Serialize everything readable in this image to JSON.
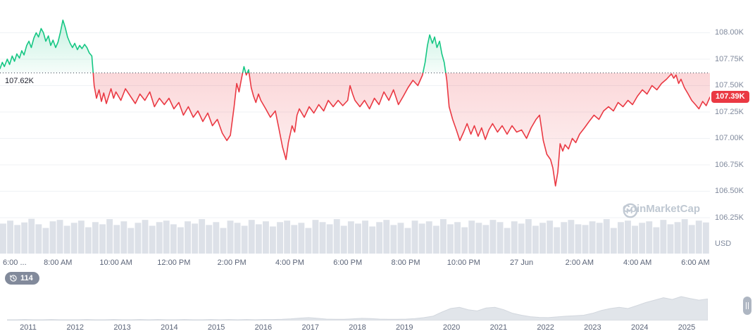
{
  "watermark": {
    "text": "CoinMarketCap"
  },
  "badges": {
    "history_count": "114"
  },
  "chart_data": {
    "type": "line",
    "baseline_value": 107.62,
    "baseline_label": "107.62K",
    "current_price_value": 107.39,
    "current_price_label": "107.39K",
    "y_axis_unit": "USD",
    "xlim": [
      0,
      24.5
    ],
    "ylim": [
      105.91,
      108.31
    ],
    "grid": true,
    "colors": {
      "up": "#16c784",
      "down": "#ea3943",
      "volume": "#dde1e8",
      "grid": "#eff2f5",
      "baseline": "#394050",
      "navigator_fill": "#e1e5ea"
    },
    "y_ticks": [
      {
        "v": 108.0,
        "label": "108.00K"
      },
      {
        "v": 107.75,
        "label": "107.75K"
      },
      {
        "v": 107.5,
        "label": "107.50K"
      },
      {
        "v": 107.25,
        "label": "107.25K"
      },
      {
        "v": 107.0,
        "label": "107.00K"
      },
      {
        "v": 106.75,
        "label": "106.75K"
      },
      {
        "v": 106.5,
        "label": "106.50K"
      },
      {
        "v": 106.25,
        "label": "106.25K"
      }
    ],
    "x_ticks": [
      {
        "t": 0,
        "label": "6:00 ..."
      },
      {
        "t": 2,
        "label": "8:00 AM"
      },
      {
        "t": 4,
        "label": "10:00 AM"
      },
      {
        "t": 6,
        "label": "12:00 PM"
      },
      {
        "t": 8,
        "label": "2:00 PM"
      },
      {
        "t": 10,
        "label": "4:00 PM"
      },
      {
        "t": 12,
        "label": "6:00 PM"
      },
      {
        "t": 14,
        "label": "8:00 PM"
      },
      {
        "t": 16,
        "label": "10:00 PM"
      },
      {
        "t": 18,
        "label": "27 Jun"
      },
      {
        "t": 20,
        "label": "2:00 AM"
      },
      {
        "t": 22,
        "label": "4:00 AM"
      },
      {
        "t": 24,
        "label": "6:00 AM"
      }
    ],
    "series": [
      {
        "name": "price",
        "points": [
          [
            0,
            107.66
          ],
          [
            0.08,
            107.72
          ],
          [
            0.15,
            107.68
          ],
          [
            0.25,
            107.75
          ],
          [
            0.33,
            107.7
          ],
          [
            0.42,
            107.78
          ],
          [
            0.5,
            107.73
          ],
          [
            0.58,
            107.8
          ],
          [
            0.67,
            107.76
          ],
          [
            0.75,
            107.83
          ],
          [
            0.83,
            107.79
          ],
          [
            0.92,
            107.88
          ],
          [
            1,
            107.92
          ],
          [
            1.08,
            107.86
          ],
          [
            1.17,
            107.95
          ],
          [
            1.25,
            108.0
          ],
          [
            1.33,
            107.96
          ],
          [
            1.42,
            108.04
          ],
          [
            1.5,
            108.0
          ],
          [
            1.58,
            107.92
          ],
          [
            1.67,
            107.97
          ],
          [
            1.75,
            107.88
          ],
          [
            1.83,
            107.93
          ],
          [
            1.92,
            107.86
          ],
          [
            2,
            107.91
          ],
          [
            2.08,
            108.0
          ],
          [
            2.17,
            108.12
          ],
          [
            2.25,
            108.05
          ],
          [
            2.33,
            107.96
          ],
          [
            2.42,
            107.9
          ],
          [
            2.5,
            107.86
          ],
          [
            2.58,
            107.9
          ],
          [
            2.67,
            107.84
          ],
          [
            2.75,
            107.88
          ],
          [
            2.83,
            107.85
          ],
          [
            2.92,
            107.89
          ],
          [
            3,
            107.86
          ],
          [
            3.08,
            107.81
          ],
          [
            3.17,
            107.78
          ],
          [
            3.25,
            107.5
          ],
          [
            3.33,
            107.38
          ],
          [
            3.42,
            107.46
          ],
          [
            3.5,
            107.35
          ],
          [
            3.58,
            107.43
          ],
          [
            3.67,
            107.33
          ],
          [
            3.75,
            107.4
          ],
          [
            3.83,
            107.47
          ],
          [
            3.92,
            107.38
          ],
          [
            4,
            107.44
          ],
          [
            4.17,
            107.36
          ],
          [
            4.33,
            107.47
          ],
          [
            4.5,
            107.4
          ],
          [
            4.67,
            107.33
          ],
          [
            4.83,
            107.42
          ],
          [
            5,
            107.36
          ],
          [
            5.17,
            107.44
          ],
          [
            5.33,
            107.3
          ],
          [
            5.5,
            107.38
          ],
          [
            5.67,
            107.32
          ],
          [
            5.83,
            107.38
          ],
          [
            6,
            107.28
          ],
          [
            6.17,
            107.34
          ],
          [
            6.33,
            107.22
          ],
          [
            6.5,
            107.3
          ],
          [
            6.67,
            107.2
          ],
          [
            6.83,
            107.26
          ],
          [
            7,
            107.16
          ],
          [
            7.17,
            107.24
          ],
          [
            7.33,
            107.12
          ],
          [
            7.5,
            107.18
          ],
          [
            7.67,
            107.05
          ],
          [
            7.83,
            106.98
          ],
          [
            7.95,
            107.03
          ],
          [
            8.08,
            107.3
          ],
          [
            8.17,
            107.52
          ],
          [
            8.25,
            107.44
          ],
          [
            8.33,
            107.56
          ],
          [
            8.42,
            107.68
          ],
          [
            8.5,
            107.6
          ],
          [
            8.58,
            107.65
          ],
          [
            8.67,
            107.48
          ],
          [
            8.75,
            107.4
          ],
          [
            8.83,
            107.34
          ],
          [
            8.92,
            107.42
          ],
          [
            9,
            107.36
          ],
          [
            9.17,
            107.28
          ],
          [
            9.33,
            107.2
          ],
          [
            9.5,
            107.26
          ],
          [
            9.62,
            107.1
          ],
          [
            9.75,
            106.92
          ],
          [
            9.87,
            106.8
          ],
          [
            9.95,
            106.96
          ],
          [
            10.08,
            107.12
          ],
          [
            10.17,
            107.06
          ],
          [
            10.25,
            107.22
          ],
          [
            10.33,
            107.28
          ],
          [
            10.5,
            107.2
          ],
          [
            10.67,
            107.3
          ],
          [
            10.83,
            107.24
          ],
          [
            11,
            107.32
          ],
          [
            11.17,
            107.26
          ],
          [
            11.33,
            107.36
          ],
          [
            11.5,
            107.3
          ],
          [
            11.67,
            107.36
          ],
          [
            11.83,
            107.31
          ],
          [
            12,
            107.36
          ],
          [
            12.08,
            107.5
          ],
          [
            12.17,
            107.42
          ],
          [
            12.25,
            107.36
          ],
          [
            12.42,
            107.3
          ],
          [
            12.58,
            107.36
          ],
          [
            12.75,
            107.28
          ],
          [
            12.92,
            107.38
          ],
          [
            13.08,
            107.32
          ],
          [
            13.25,
            107.44
          ],
          [
            13.42,
            107.36
          ],
          [
            13.58,
            107.46
          ],
          [
            13.75,
            107.32
          ],
          [
            13.92,
            107.4
          ],
          [
            14.08,
            107.48
          ],
          [
            14.25,
            107.55
          ],
          [
            14.42,
            107.5
          ],
          [
            14.58,
            107.6
          ],
          [
            14.67,
            107.72
          ],
          [
            14.75,
            107.88
          ],
          [
            14.83,
            107.98
          ],
          [
            14.92,
            107.9
          ],
          [
            15,
            107.96
          ],
          [
            15.08,
            107.86
          ],
          [
            15.17,
            107.92
          ],
          [
            15.25,
            107.8
          ],
          [
            15.33,
            107.72
          ],
          [
            15.42,
            107.55
          ],
          [
            15.5,
            107.3
          ],
          [
            15.62,
            107.18
          ],
          [
            15.75,
            107.08
          ],
          [
            15.87,
            106.98
          ],
          [
            16,
            107.06
          ],
          [
            16.12,
            107.14
          ],
          [
            16.25,
            107.04
          ],
          [
            16.37,
            107.12
          ],
          [
            16.5,
            107.02
          ],
          [
            16.62,
            107.1
          ],
          [
            16.75,
            106.99
          ],
          [
            16.87,
            107.08
          ],
          [
            17,
            107.14
          ],
          [
            17.17,
            107.06
          ],
          [
            17.33,
            107.12
          ],
          [
            17.5,
            107.04
          ],
          [
            17.67,
            107.12
          ],
          [
            17.83,
            107.06
          ],
          [
            18,
            107.08
          ],
          [
            18.17,
            107.0
          ],
          [
            18.33,
            107.1
          ],
          [
            18.5,
            107.18
          ],
          [
            18.62,
            107.22
          ],
          [
            18.75,
            106.98
          ],
          [
            18.87,
            106.85
          ],
          [
            19,
            106.8
          ],
          [
            19.08,
            106.72
          ],
          [
            19.17,
            106.55
          ],
          [
            19.25,
            106.68
          ],
          [
            19.33,
            106.95
          ],
          [
            19.42,
            106.88
          ],
          [
            19.5,
            106.94
          ],
          [
            19.62,
            106.9
          ],
          [
            19.75,
            107.0
          ],
          [
            19.87,
            106.96
          ],
          [
            20,
            107.04
          ],
          [
            20.17,
            107.1
          ],
          [
            20.33,
            107.16
          ],
          [
            20.5,
            107.22
          ],
          [
            20.67,
            107.18
          ],
          [
            20.83,
            107.26
          ],
          [
            21,
            107.3
          ],
          [
            21.17,
            107.26
          ],
          [
            21.33,
            107.34
          ],
          [
            21.5,
            107.3
          ],
          [
            21.67,
            107.36
          ],
          [
            21.83,
            107.32
          ],
          [
            22,
            107.4
          ],
          [
            22.17,
            107.46
          ],
          [
            22.33,
            107.42
          ],
          [
            22.5,
            107.5
          ],
          [
            22.67,
            107.46
          ],
          [
            22.83,
            107.52
          ],
          [
            23,
            107.56
          ],
          [
            23.17,
            107.61
          ],
          [
            23.25,
            107.57
          ],
          [
            23.33,
            107.6
          ],
          [
            23.42,
            107.52
          ],
          [
            23.5,
            107.56
          ],
          [
            23.62,
            107.48
          ],
          [
            23.75,
            107.42
          ],
          [
            23.87,
            107.36
          ],
          [
            24,
            107.32
          ],
          [
            24.12,
            107.28
          ],
          [
            24.25,
            107.35
          ],
          [
            24.37,
            107.31
          ],
          [
            24.5,
            107.39
          ]
        ]
      }
    ],
    "volume": [
      0.82,
      0.9,
      0.78,
      0.85,
      0.95,
      0.8,
      0.7,
      0.88,
      0.92,
      0.76,
      0.84,
      0.9,
      0.72,
      0.86,
      0.8,
      0.94,
      0.78,
      0.88,
      0.7,
      0.84,
      0.92,
      0.76,
      0.86,
      0.9,
      0.8,
      0.72,
      0.88,
      0.82,
      0.94,
      0.78,
      0.86,
      0.7,
      0.9,
      0.84,
      0.76,
      0.92,
      0.8,
      0.88,
      0.74,
      0.86,
      0.9,
      0.78,
      0.84,
      0.7,
      0.92,
      0.86,
      0.8,
      0.94,
      0.76,
      0.88,
      0.82,
      0.9,
      0.74,
      0.86,
      0.92,
      0.78,
      0.84,
      0.7,
      0.9,
      0.82,
      0.88,
      0.76,
      0.94,
      0.8,
      0.86,
      0.72,
      0.9,
      0.84,
      0.78,
      0.92,
      0.86,
      0.7,
      0.88,
      0.82,
      0.94,
      0.76,
      0.84,
      0.9,
      0.72,
      0.86,
      0.92,
      0.8,
      0.78,
      0.88,
      0.84,
      0.94,
      0.7,
      0.86,
      0.9,
      0.76,
      0.84,
      0.88,
      0.72,
      0.92,
      0.8,
      0.86,
      0.94,
      0.78,
      0.9,
      0.85
    ]
  },
  "navigator": {
    "years": [
      "2011",
      "2012",
      "2013",
      "2014",
      "2015",
      "2016",
      "2017",
      "2018",
      "2019",
      "2020",
      "2021",
      "2022",
      "2023",
      "2024",
      "2025"
    ],
    "values": [
      0.03,
      0.03,
      0.04,
      0.03,
      0.03,
      0.04,
      0.03,
      0.03,
      0.03,
      0.04,
      0.03,
      0.03,
      0.04,
      0.03,
      0.03,
      0.04,
      0.03,
      0.04,
      0.03,
      0.03,
      0.04,
      0.03,
      0.03,
      0.04,
      0.03,
      0.04,
      0.03,
      0.04,
      0.03,
      0.04,
      0.04,
      0.05,
      0.07,
      0.1,
      0.12,
      0.09,
      0.06,
      0.05,
      0.05,
      0.07,
      0.09,
      0.08,
      0.06,
      0.05,
      0.05,
      0.06,
      0.08,
      0.12,
      0.18,
      0.35,
      0.5,
      0.55,
      0.45,
      0.4,
      0.52,
      0.55,
      0.45,
      0.3,
      0.22,
      0.16,
      0.13,
      0.12,
      0.15,
      0.18,
      0.2,
      0.22,
      0.3,
      0.42,
      0.5,
      0.55,
      0.5,
      0.62,
      0.75,
      0.85,
      0.95,
      0.88,
      1.0,
      0.92,
      0.85,
      0.9
    ]
  }
}
